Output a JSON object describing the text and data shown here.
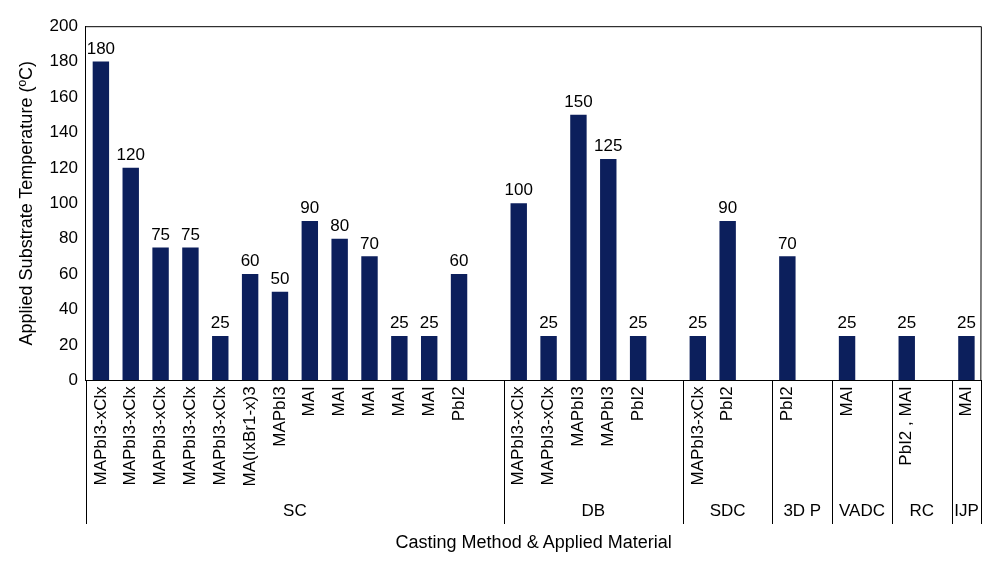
{
  "chart_data": {
    "type": "bar",
    "xlabel": "Casting Method & Applied Material",
    "ylabel": "Applied Substrate Temperature (ºC)",
    "categories": [
      "MAPbI3-xClx",
      "MAPbI3-xClx",
      "MAPbI3-xClx",
      "MAPbI3-xClx",
      "MAPbI3-xClx",
      "MA(IxBr1-x)3",
      "MAPbI3",
      "MAI",
      "MAI",
      "MAI",
      "MAI",
      "MAI",
      "PbI2",
      null,
      "MAPbI3-xClx",
      "MAPbI3-xClx",
      "MAPbI3",
      "MAPbI3",
      "PbI2",
      null,
      "MAPbI3-xClx",
      "PbI2",
      null,
      "PbI2",
      null,
      "MAI",
      null,
      "PbI2 , MAI",
      null,
      "MAI"
    ],
    "values": [
      180,
      120,
      75,
      75,
      25,
      60,
      50,
      90,
      80,
      70,
      25,
      25,
      60,
      null,
      100,
      25,
      150,
      125,
      25,
      null,
      25,
      90,
      null,
      70,
      null,
      25,
      null,
      25,
      null,
      25
    ],
    "color": "#0c1f5c",
    "ylim": [
      0,
      200
    ],
    "yticks": [
      0,
      20,
      40,
      60,
      80,
      100,
      120,
      140,
      160,
      180,
      200
    ],
    "grid": false,
    "legend": false,
    "data_labels": true,
    "annotations": [
      "SC",
      "DB",
      "SDC",
      "3D P",
      "VADC",
      "RC",
      "IJP"
    ]
  }
}
